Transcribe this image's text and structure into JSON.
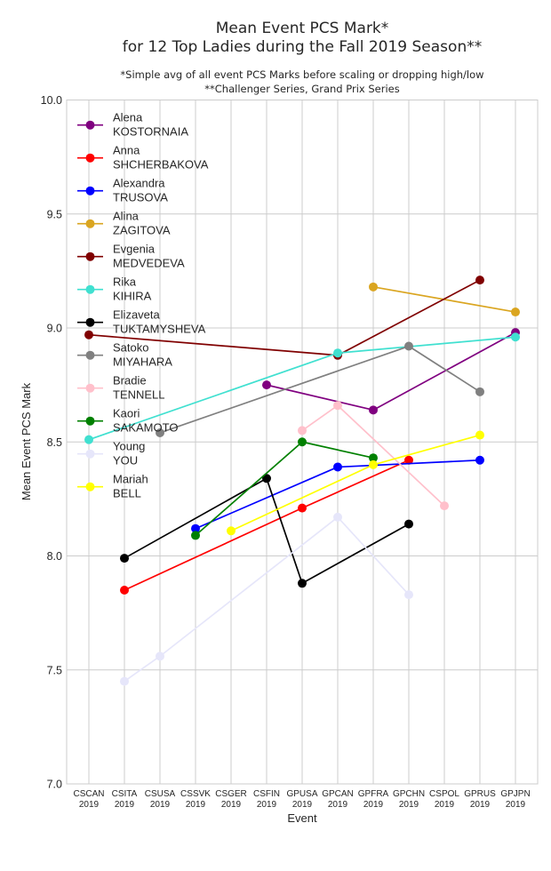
{
  "chart_data": {
    "type": "line",
    "title": [
      "Mean Event PCS Mark*",
      "for 12 Top Ladies during the Fall 2019 Season**"
    ],
    "subtitle": [
      "*Simple avg of all event PCS Marks before scaling or dropping high/low",
      "**Challenger Series, Grand Prix Series"
    ],
    "xlabel": "Event",
    "ylabel": "Mean Event PCS Mark",
    "ylim": [
      7.0,
      10.0
    ],
    "yticks": [
      7.0,
      7.5,
      8.0,
      8.5,
      9.0,
      9.5,
      10.0
    ],
    "ytick_labels": [
      "7.0",
      "7.5",
      "8.0",
      "8.5",
      "9.0",
      "9.5",
      "10.0"
    ],
    "grid": true,
    "legend_position": "top-left",
    "categories": [
      [
        "CSCAN",
        "2019"
      ],
      [
        "CSITA",
        "2019"
      ],
      [
        "CSUSA",
        "2019"
      ],
      [
        "CSSVK",
        "2019"
      ],
      [
        "CSGER",
        "2019"
      ],
      [
        "CSFIN",
        "2019"
      ],
      [
        "GPUSA",
        "2019"
      ],
      [
        "GPCAN",
        "2019"
      ],
      [
        "GPFRA",
        "2019"
      ],
      [
        "GPCHN",
        "2019"
      ],
      [
        "CSPOL",
        "2019"
      ],
      [
        "GPRUS",
        "2019"
      ],
      [
        "GPJPN",
        "2019"
      ]
    ],
    "series": [
      {
        "first": "Alena",
        "last": "KOSTORNAIA",
        "color": "#800080",
        "points": [
          [
            "CSFIN",
            8.75
          ],
          [
            "GPFRA",
            8.64
          ],
          [
            "GPJPN",
            8.98
          ]
        ]
      },
      {
        "first": "Anna",
        "last": "SHCHERBAKOVA",
        "color": "#ff0000",
        "points": [
          [
            "CSITA",
            7.85
          ],
          [
            "GPUSA",
            8.21
          ],
          [
            "GPCHN",
            8.42
          ]
        ]
      },
      {
        "first": "Alexandra",
        "last": "TRUSOVA",
        "color": "#0000ff",
        "points": [
          [
            "CSSVK",
            8.12
          ],
          [
            "GPCAN",
            8.39
          ],
          [
            "GPRUS",
            8.42
          ]
        ]
      },
      {
        "first": "Alina",
        "last": "ZAGITOVA",
        "color": "#daa520",
        "points": [
          [
            "GPFRA",
            9.18
          ],
          [
            "GPJPN",
            9.07
          ]
        ]
      },
      {
        "first": "Evgenia",
        "last": "MEDVEDEVA",
        "color": "#800000",
        "points": [
          [
            "CSCAN",
            8.97
          ],
          [
            "GPCAN",
            8.88
          ],
          [
            "GPRUS",
            9.21
          ]
        ]
      },
      {
        "first": "Rika",
        "last": "KIHIRA",
        "color": "#40e0d0",
        "points": [
          [
            "CSCAN",
            8.51
          ],
          [
            "GPCAN",
            8.89
          ],
          [
            "GPJPN",
            8.96
          ]
        ]
      },
      {
        "first": "Elizaveta",
        "last": "TUKTAMYSHEVA",
        "color": "#000000",
        "points": [
          [
            "CSITA",
            7.99
          ],
          [
            "CSFIN",
            8.34
          ],
          [
            "GPUSA",
            7.88
          ],
          [
            "GPCHN",
            8.14
          ]
        ]
      },
      {
        "first": "Satoko",
        "last": "MIYAHARA",
        "color": "#808080",
        "points": [
          [
            "CSUSA",
            8.54
          ],
          [
            "GPCHN",
            8.92
          ],
          [
            "GPRUS",
            8.72
          ]
        ]
      },
      {
        "first": "Bradie",
        "last": "TENNELL",
        "color": "#ffc0cb",
        "points": [
          [
            "GPUSA",
            8.55
          ],
          [
            "GPCAN",
            8.66
          ],
          [
            "CSPOL",
            8.22
          ]
        ]
      },
      {
        "first": "Kaori",
        "last": "SAKAMOTO",
        "color": "#008000",
        "points": [
          [
            "CSSVK",
            8.09
          ],
          [
            "GPUSA",
            8.5
          ],
          [
            "GPFRA",
            8.43
          ]
        ]
      },
      {
        "first": "Young",
        "last": "YOU",
        "color": "#e6e6fa",
        "points": [
          [
            "CSITA",
            7.45
          ],
          [
            "CSUSA",
            7.56
          ],
          [
            "GPCAN",
            8.17
          ],
          [
            "GPCHN",
            7.83
          ]
        ]
      },
      {
        "first": "Mariah",
        "last": "BELL",
        "color": "#ffff00",
        "points": [
          [
            "CSGER",
            8.11
          ],
          [
            "GPFRA",
            8.4
          ],
          [
            "GPRUS",
            8.53
          ]
        ]
      }
    ]
  }
}
